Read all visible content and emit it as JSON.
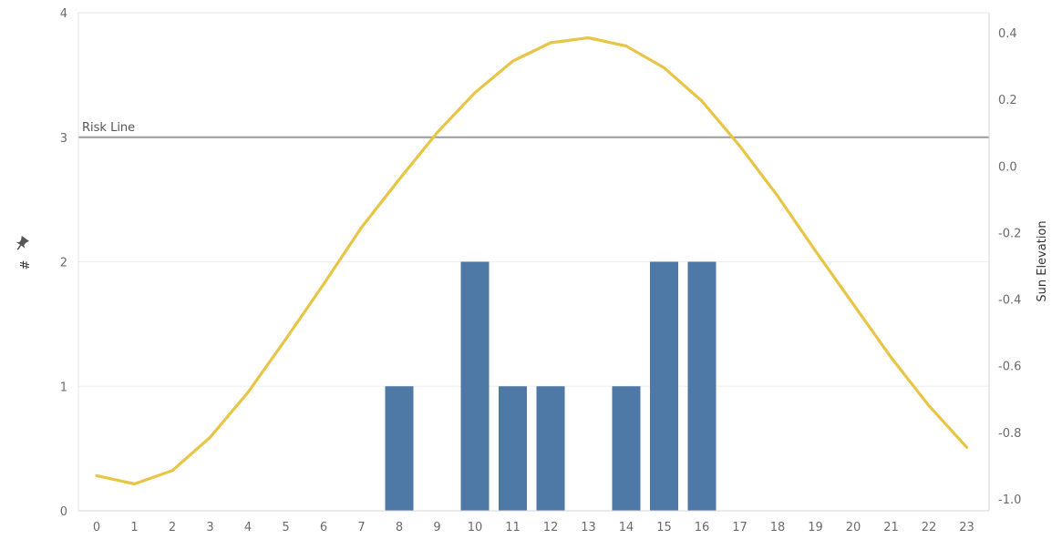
{
  "chart_data": {
    "type": "bar",
    "categories": [
      "0",
      "1",
      "2",
      "3",
      "4",
      "5",
      "6",
      "7",
      "8",
      "9",
      "10",
      "11",
      "12",
      "13",
      "14",
      "15",
      "16",
      "17",
      "18",
      "19",
      "20",
      "21",
      "22",
      "23"
    ],
    "series": [
      {
        "axis": "left",
        "type": "bar",
        "color": "#4e79a7",
        "values": [
          0,
          0,
          0,
          0,
          0,
          0,
          0,
          0,
          1,
          0,
          2,
          1,
          1,
          0,
          1,
          2,
          2,
          0,
          0,
          0,
          0,
          0,
          0,
          0
        ]
      },
      {
        "name": "Sun Elevation",
        "axis": "right",
        "type": "line",
        "color": "#e8c547",
        "values": [
          -0.93,
          -0.955,
          -0.915,
          -0.815,
          -0.68,
          -0.52,
          -0.355,
          -0.185,
          -0.04,
          0.1,
          0.22,
          0.315,
          0.37,
          0.385,
          0.36,
          0.295,
          0.195,
          0.06,
          -0.09,
          -0.255,
          -0.415,
          -0.575,
          -0.72,
          -0.845
        ]
      }
    ],
    "ylim_left": [
      0,
      4
    ],
    "yticks_left": [
      "0",
      "1",
      "2",
      "3",
      "4"
    ],
    "ylabel_left": "#",
    "ylabel_left_icon": "pin-icon",
    "ylim_right": [
      -1.0,
      0.45
    ],
    "yticks_right": [
      "-1.0",
      "-0.8",
      "-0.6",
      "-0.4",
      "-0.2",
      "0.0",
      "0.2",
      "0.4"
    ],
    "ylabel_right": "Sun Elevation",
    "reference_line": {
      "label": "Risk Line",
      "value": 3,
      "color": "#9a9a9a"
    },
    "grid": true,
    "legend": "none"
  }
}
